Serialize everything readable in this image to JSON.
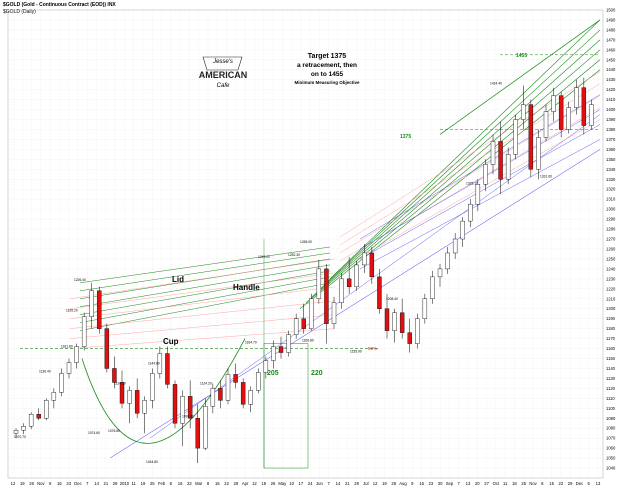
{
  "header": {
    "title": "$GOLD (Gold - Continuous Contract (EOD)) INX",
    "subtitle": "$GOLD (Daily)"
  },
  "annotations": {
    "target": [
      "Target 1375",
      "a retracement,  then",
      "on  to 1455"
    ],
    "objective": "Minimum Measuring Objective",
    "lid": "Lid",
    "handle": "Handle",
    "cup": "Cup",
    "n205": "205",
    "n220": "220",
    "pct": "59%",
    "t1375": "1375",
    "t1455": "1455"
  },
  "logo": {
    "top": "Jesse's",
    "main": "AMERICAN",
    "bottom": "Cafe"
  },
  "chart_data": {
    "type": "candlestick",
    "ylim": [
      1030,
      1500
    ],
    "y_ticks": [
      1040,
      1050,
      1060,
      1070,
      1080,
      1090,
      1100,
      1110,
      1120,
      1130,
      1140,
      1150,
      1160,
      1170,
      1180,
      1190,
      1200,
      1210,
      1220,
      1230,
      1240,
      1250,
      1260,
      1270,
      1280,
      1290,
      1300,
      1310,
      1320,
      1330,
      1340,
      1350,
      1360,
      1370,
      1380,
      1390,
      1400,
      1410,
      1420,
      1430,
      1440,
      1450,
      1460,
      1470,
      1480,
      1490,
      1500
    ],
    "x_ticks": [
      "12",
      "19",
      "26",
      "Nov",
      "9",
      "16",
      "23",
      "Dec",
      "7",
      "14",
      "21",
      "28",
      "2010",
      "11",
      "19",
      "25",
      "Feb",
      "8",
      "16",
      "22",
      "Mar",
      "8",
      "15",
      "22",
      "29",
      "Apr",
      "12",
      "19",
      "26",
      "May",
      "10",
      "17",
      "24",
      "Jun",
      "7",
      "14",
      "21",
      "28",
      "Jul",
      "12",
      "19",
      "26",
      "Aug",
      "9",
      "16",
      "23",
      "30",
      "Sep",
      "7",
      "13",
      "20",
      "27",
      "Oct",
      "11",
      "18",
      "25",
      "Nov",
      "8",
      "15",
      "22",
      "29",
      "Dec",
      "6",
      "13"
    ],
    "price_labels": [
      "1070.70",
      "1226.40",
      "1195.20",
      "1161.80",
      "1136.40",
      "1144.80",
      "1124.50",
      "1124.20",
      "1074.60",
      "1091.80",
      "1076.80",
      "1044.80",
      "1164.70",
      "1249.00",
      "1265.00",
      "1252.30",
      "1166.80",
      "1155.90",
      "1424.40",
      "1325.10",
      "1208.40",
      "1331.60"
    ],
    "candles": [
      [
        1075,
        1080,
        1070,
        1078
      ],
      [
        1078,
        1085,
        1074,
        1082
      ],
      [
        1082,
        1096,
        1079,
        1094
      ],
      [
        1094,
        1100,
        1088,
        1090
      ],
      [
        1090,
        1110,
        1088,
        1108
      ],
      [
        1108,
        1120,
        1100,
        1116
      ],
      [
        1116,
        1140,
        1112,
        1135
      ],
      [
        1135,
        1150,
        1130,
        1146
      ],
      [
        1146,
        1165,
        1140,
        1162
      ],
      [
        1162,
        1196,
        1158,
        1192
      ],
      [
        1192,
        1226,
        1180,
        1218
      ],
      [
        1218,
        1222,
        1175,
        1180
      ],
      [
        1180,
        1185,
        1136,
        1140
      ],
      [
        1140,
        1152,
        1120,
        1126
      ],
      [
        1126,
        1138,
        1100,
        1105
      ],
      [
        1105,
        1122,
        1085,
        1118
      ],
      [
        1118,
        1130,
        1090,
        1095
      ],
      [
        1095,
        1112,
        1075,
        1108
      ],
      [
        1108,
        1140,
        1100,
        1135
      ],
      [
        1135,
        1162,
        1130,
        1155
      ],
      [
        1155,
        1162,
        1120,
        1124
      ],
      [
        1124,
        1128,
        1080,
        1085
      ],
      [
        1085,
        1118,
        1062,
        1112
      ],
      [
        1112,
        1128,
        1080,
        1090
      ],
      [
        1090,
        1104,
        1045,
        1060
      ],
      [
        1060,
        1110,
        1058,
        1102
      ],
      [
        1102,
        1125,
        1095,
        1120
      ],
      [
        1120,
        1128,
        1100,
        1108
      ],
      [
        1108,
        1140,
        1104,
        1134
      ],
      [
        1134,
        1145,
        1120,
        1126
      ],
      [
        1126,
        1130,
        1100,
        1104
      ],
      [
        1104,
        1122,
        1096,
        1118
      ],
      [
        1118,
        1140,
        1115,
        1136
      ],
      [
        1136,
        1152,
        1130,
        1148
      ],
      [
        1148,
        1168,
        1140,
        1162
      ],
      [
        1162,
        1172,
        1150,
        1156
      ],
      [
        1156,
        1178,
        1152,
        1174
      ],
      [
        1174,
        1195,
        1170,
        1190
      ],
      [
        1190,
        1205,
        1175,
        1180
      ],
      [
        1180,
        1215,
        1178,
        1210
      ],
      [
        1210,
        1249,
        1205,
        1240
      ],
      [
        1240,
        1245,
        1165,
        1185
      ],
      [
        1185,
        1212,
        1180,
        1206
      ],
      [
        1206,
        1236,
        1200,
        1230
      ],
      [
        1230,
        1252,
        1215,
        1222
      ],
      [
        1222,
        1248,
        1218,
        1244
      ],
      [
        1244,
        1265,
        1236,
        1256
      ],
      [
        1256,
        1262,
        1225,
        1232
      ],
      [
        1232,
        1240,
        1195,
        1200
      ],
      [
        1200,
        1215,
        1170,
        1178
      ],
      [
        1178,
        1200,
        1166,
        1196
      ],
      [
        1196,
        1210,
        1170,
        1176
      ],
      [
        1176,
        1190,
        1156,
        1165
      ],
      [
        1165,
        1195,
        1160,
        1190
      ],
      [
        1190,
        1215,
        1185,
        1210
      ],
      [
        1210,
        1238,
        1205,
        1232
      ],
      [
        1232,
        1245,
        1222,
        1240
      ],
      [
        1240,
        1262,
        1235,
        1256
      ],
      [
        1256,
        1276,
        1250,
        1270
      ],
      [
        1270,
        1292,
        1262,
        1288
      ],
      [
        1288,
        1310,
        1282,
        1305
      ],
      [
        1305,
        1330,
        1298,
        1325
      ],
      [
        1325,
        1350,
        1318,
        1345
      ],
      [
        1345,
        1375,
        1335,
        1368
      ],
      [
        1368,
        1388,
        1315,
        1330
      ],
      [
        1330,
        1362,
        1325,
        1355
      ],
      [
        1355,
        1395,
        1350,
        1390
      ],
      [
        1390,
        1424,
        1380,
        1405
      ],
      [
        1405,
        1410,
        1332,
        1340
      ],
      [
        1340,
        1380,
        1330,
        1372
      ],
      [
        1372,
        1405,
        1368,
        1398
      ],
      [
        1398,
        1422,
        1388,
        1414
      ],
      [
        1414,
        1418,
        1372,
        1380
      ],
      [
        1380,
        1408,
        1376,
        1402
      ],
      [
        1402,
        1430,
        1395,
        1422
      ],
      [
        1422,
        1432,
        1375,
        1384
      ],
      [
        1384,
        1410,
        1380,
        1405
      ]
    ]
  },
  "colors": {
    "up": "#ffffff",
    "down": "#e01010",
    "green": "#1a8a1a",
    "pink": "#ff9090",
    "blue": "#3a3af0",
    "grid": "#d8d8d8"
  }
}
